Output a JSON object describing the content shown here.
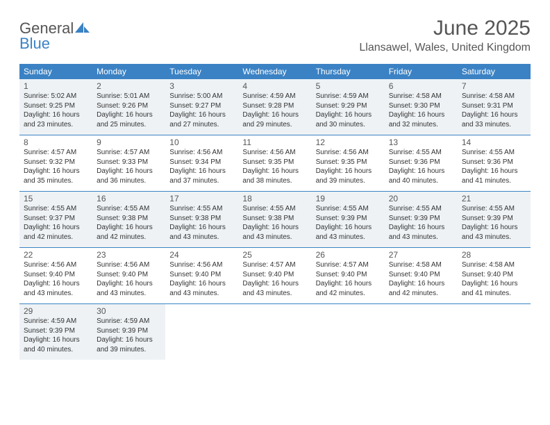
{
  "brand": {
    "word1": "General",
    "word2": "Blue"
  },
  "title": "June 2025",
  "location": "Llansawel, Wales, United Kingdom",
  "colors": {
    "header_bg": "#3b82c4",
    "header_text": "#ffffff",
    "shaded_bg": "#eef2f5",
    "rule": "#3b82c4",
    "text": "#333333",
    "muted": "#555555"
  },
  "typography": {
    "title_fontsize": 30,
    "location_fontsize": 16,
    "dayhead_fontsize": 12,
    "daynum_fontsize": 12,
    "body_fontsize": 10
  },
  "day_headers": [
    "Sunday",
    "Monday",
    "Tuesday",
    "Wednesday",
    "Thursday",
    "Friday",
    "Saturday"
  ],
  "weeks": [
    {
      "shaded": true,
      "cells": [
        {
          "num": "1",
          "sunrise": "Sunrise: 5:02 AM",
          "sunset": "Sunset: 9:25 PM",
          "daylight": "Daylight: 16 hours and 23 minutes."
        },
        {
          "num": "2",
          "sunrise": "Sunrise: 5:01 AM",
          "sunset": "Sunset: 9:26 PM",
          "daylight": "Daylight: 16 hours and 25 minutes."
        },
        {
          "num": "3",
          "sunrise": "Sunrise: 5:00 AM",
          "sunset": "Sunset: 9:27 PM",
          "daylight": "Daylight: 16 hours and 27 minutes."
        },
        {
          "num": "4",
          "sunrise": "Sunrise: 4:59 AM",
          "sunset": "Sunset: 9:28 PM",
          "daylight": "Daylight: 16 hours and 29 minutes."
        },
        {
          "num": "5",
          "sunrise": "Sunrise: 4:59 AM",
          "sunset": "Sunset: 9:29 PM",
          "daylight": "Daylight: 16 hours and 30 minutes."
        },
        {
          "num": "6",
          "sunrise": "Sunrise: 4:58 AM",
          "sunset": "Sunset: 9:30 PM",
          "daylight": "Daylight: 16 hours and 32 minutes."
        },
        {
          "num": "7",
          "sunrise": "Sunrise: 4:58 AM",
          "sunset": "Sunset: 9:31 PM",
          "daylight": "Daylight: 16 hours and 33 minutes."
        }
      ]
    },
    {
      "shaded": false,
      "cells": [
        {
          "num": "8",
          "sunrise": "Sunrise: 4:57 AM",
          "sunset": "Sunset: 9:32 PM",
          "daylight": "Daylight: 16 hours and 35 minutes."
        },
        {
          "num": "9",
          "sunrise": "Sunrise: 4:57 AM",
          "sunset": "Sunset: 9:33 PM",
          "daylight": "Daylight: 16 hours and 36 minutes."
        },
        {
          "num": "10",
          "sunrise": "Sunrise: 4:56 AM",
          "sunset": "Sunset: 9:34 PM",
          "daylight": "Daylight: 16 hours and 37 minutes."
        },
        {
          "num": "11",
          "sunrise": "Sunrise: 4:56 AM",
          "sunset": "Sunset: 9:35 PM",
          "daylight": "Daylight: 16 hours and 38 minutes."
        },
        {
          "num": "12",
          "sunrise": "Sunrise: 4:56 AM",
          "sunset": "Sunset: 9:35 PM",
          "daylight": "Daylight: 16 hours and 39 minutes."
        },
        {
          "num": "13",
          "sunrise": "Sunrise: 4:55 AM",
          "sunset": "Sunset: 9:36 PM",
          "daylight": "Daylight: 16 hours and 40 minutes."
        },
        {
          "num": "14",
          "sunrise": "Sunrise: 4:55 AM",
          "sunset": "Sunset: 9:36 PM",
          "daylight": "Daylight: 16 hours and 41 minutes."
        }
      ]
    },
    {
      "shaded": true,
      "cells": [
        {
          "num": "15",
          "sunrise": "Sunrise: 4:55 AM",
          "sunset": "Sunset: 9:37 PM",
          "daylight": "Daylight: 16 hours and 42 minutes."
        },
        {
          "num": "16",
          "sunrise": "Sunrise: 4:55 AM",
          "sunset": "Sunset: 9:38 PM",
          "daylight": "Daylight: 16 hours and 42 minutes."
        },
        {
          "num": "17",
          "sunrise": "Sunrise: 4:55 AM",
          "sunset": "Sunset: 9:38 PM",
          "daylight": "Daylight: 16 hours and 43 minutes."
        },
        {
          "num": "18",
          "sunrise": "Sunrise: 4:55 AM",
          "sunset": "Sunset: 9:38 PM",
          "daylight": "Daylight: 16 hours and 43 minutes."
        },
        {
          "num": "19",
          "sunrise": "Sunrise: 4:55 AM",
          "sunset": "Sunset: 9:39 PM",
          "daylight": "Daylight: 16 hours and 43 minutes."
        },
        {
          "num": "20",
          "sunrise": "Sunrise: 4:55 AM",
          "sunset": "Sunset: 9:39 PM",
          "daylight": "Daylight: 16 hours and 43 minutes."
        },
        {
          "num": "21",
          "sunrise": "Sunrise: 4:55 AM",
          "sunset": "Sunset: 9:39 PM",
          "daylight": "Daylight: 16 hours and 43 minutes."
        }
      ]
    },
    {
      "shaded": false,
      "cells": [
        {
          "num": "22",
          "sunrise": "Sunrise: 4:56 AM",
          "sunset": "Sunset: 9:40 PM",
          "daylight": "Daylight: 16 hours and 43 minutes."
        },
        {
          "num": "23",
          "sunrise": "Sunrise: 4:56 AM",
          "sunset": "Sunset: 9:40 PM",
          "daylight": "Daylight: 16 hours and 43 minutes."
        },
        {
          "num": "24",
          "sunrise": "Sunrise: 4:56 AM",
          "sunset": "Sunset: 9:40 PM",
          "daylight": "Daylight: 16 hours and 43 minutes."
        },
        {
          "num": "25",
          "sunrise": "Sunrise: 4:57 AM",
          "sunset": "Sunset: 9:40 PM",
          "daylight": "Daylight: 16 hours and 43 minutes."
        },
        {
          "num": "26",
          "sunrise": "Sunrise: 4:57 AM",
          "sunset": "Sunset: 9:40 PM",
          "daylight": "Daylight: 16 hours and 42 minutes."
        },
        {
          "num": "27",
          "sunrise": "Sunrise: 4:58 AM",
          "sunset": "Sunset: 9:40 PM",
          "daylight": "Daylight: 16 hours and 42 minutes."
        },
        {
          "num": "28",
          "sunrise": "Sunrise: 4:58 AM",
          "sunset": "Sunset: 9:40 PM",
          "daylight": "Daylight: 16 hours and 41 minutes."
        }
      ]
    },
    {
      "shaded": true,
      "last": true,
      "cells": [
        {
          "num": "29",
          "sunrise": "Sunrise: 4:59 AM",
          "sunset": "Sunset: 9:39 PM",
          "daylight": "Daylight: 16 hours and 40 minutes."
        },
        {
          "num": "30",
          "sunrise": "Sunrise: 4:59 AM",
          "sunset": "Sunset: 9:39 PM",
          "daylight": "Daylight: 16 hours and 39 minutes."
        },
        {
          "empty": true
        },
        {
          "empty": true
        },
        {
          "empty": true
        },
        {
          "empty": true
        },
        {
          "empty": true
        }
      ]
    }
  ]
}
